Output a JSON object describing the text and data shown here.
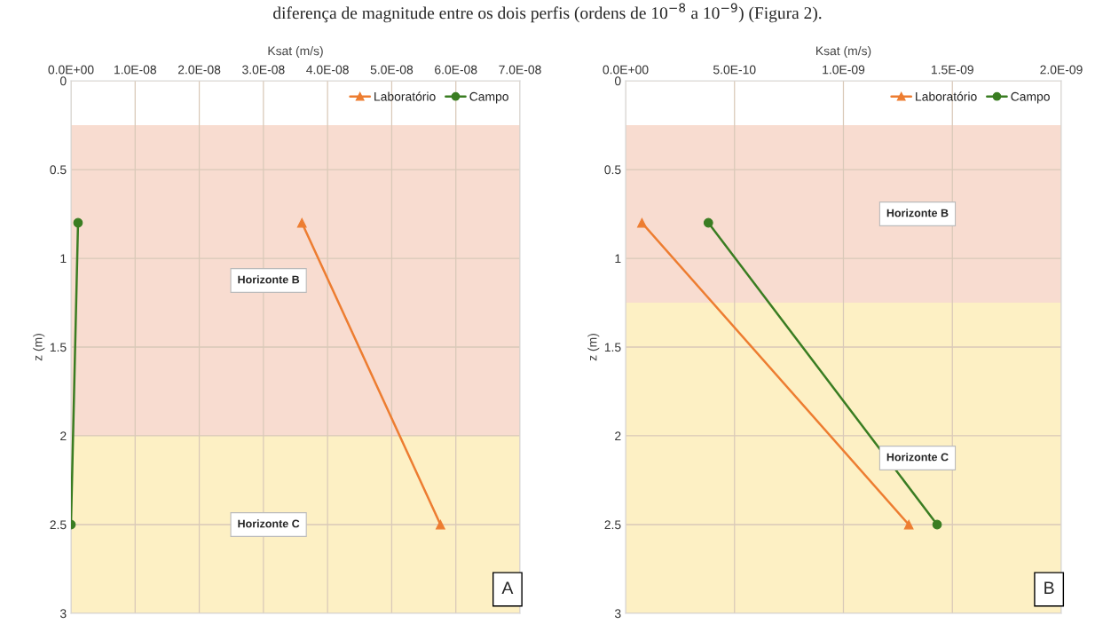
{
  "chart_data": [
    {
      "type": "line",
      "xlabel": "Ksat (m/s)",
      "ylabel": "z (m)",
      "xlim": [
        0,
        7e-08
      ],
      "xticks": [
        {
          "value": 0,
          "label": "0.0E+00"
        },
        {
          "value": 1e-08,
          "label": "1.0E-08"
        },
        {
          "value": 2e-08,
          "label": "2.0E-08"
        },
        {
          "value": 3e-08,
          "label": "3.0E-08"
        },
        {
          "value": 4e-08,
          "label": "4.0E-08"
        },
        {
          "value": 5e-08,
          "label": "5.0E-08"
        },
        {
          "value": 6e-08,
          "label": "6.0E-08"
        },
        {
          "value": 7e-08,
          "label": "7.0E-08"
        }
      ],
      "ylim": [
        3,
        0
      ],
      "yticks": [
        0,
        0.5,
        1,
        1.5,
        2,
        2.5,
        3
      ],
      "grid": true,
      "legend": "top right",
      "series": [
        {
          "name": "Laboratório",
          "color": "#ed7d31",
          "marker": "triangle",
          "x": [
            3.6e-08,
            5.76e-08
          ],
          "values": [
            0.8,
            2.5
          ]
        },
        {
          "name": "Campo",
          "color": "#3a7d22",
          "marker": "circle",
          "x": [
            1.1e-09,
            0
          ],
          "values": [
            0.8,
            2.5
          ]
        }
      ],
      "bands": [
        {
          "axis": "y",
          "from": 0.25,
          "to": 2,
          "color": "#f8dcd0"
        },
        {
          "axis": "y",
          "from": 2,
          "to": 3,
          "color": "#fdf0c4"
        }
      ],
      "annotations": [
        "Horizonte B",
        "Horizonte C",
        "A",
        "diferença de magnitude entre os dois perfis (ordens de 10$^{−8}$ a 10$^{−9}$) (Figura 2)."
      ]
    },
    {
      "type": "line",
      "xlabel": "Ksat (m/s)",
      "ylabel": "z (m)",
      "xlim": [
        0,
        2e-09
      ],
      "xticks": [
        {
          "value": 0,
          "label": "0.0E+00"
        },
        {
          "value": 5e-10,
          "label": "5.0E-10"
        },
        {
          "value": 1e-09,
          "label": "1.0E-09"
        },
        {
          "value": 1.5e-09,
          "label": "1.5E-09"
        },
        {
          "value": 2e-09,
          "label": "2.0E-09"
        }
      ],
      "ylim": [
        3,
        0
      ],
      "yticks": [
        0,
        0.5,
        1,
        1.5,
        2,
        2.5,
        3
      ],
      "grid": true,
      "legend": "top right",
      "series": [
        {
          "name": "Laboratório",
          "color": "#ed7d31",
          "marker": "triangle",
          "x": [
            7.5e-11,
            1.3e-09
          ],
          "values": [
            0.8,
            2.5
          ]
        },
        {
          "name": "Campo",
          "color": "#3a7d22",
          "marker": "circle",
          "x": [
            3.8e-10,
            1.43e-09
          ],
          "values": [
            0.8,
            2.5
          ]
        }
      ],
      "bands": [
        {
          "axis": "y",
          "from": 0.25,
          "to": 1.25,
          "color": "#f8dcd0"
        },
        {
          "axis": "y",
          "from": 1.25,
          "to": 3,
          "color": "#fdf0c4"
        }
      ],
      "annotations": [
        "Horizonte B",
        "Horizonte C",
        "B"
      ]
    }
  ]
}
